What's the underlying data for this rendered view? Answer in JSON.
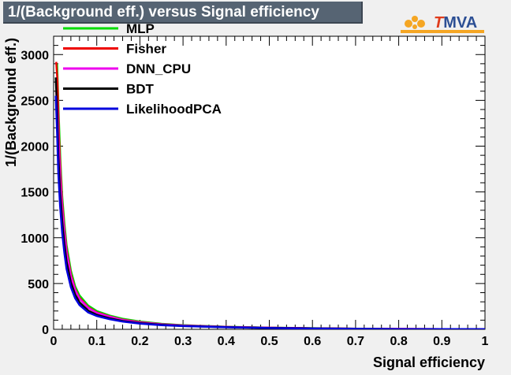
{
  "chart_data": {
    "type": "line",
    "title": "1/(Background eff.) versus Signal efficiency",
    "xlabel": "Signal efficiency",
    "ylabel": "1/(Background eff.)",
    "xlim": [
      0,
      1
    ],
    "ylim": [
      0,
      3200
    ],
    "xticks": [
      "0",
      "0.1",
      "0.2",
      "0.3",
      "0.4",
      "0.5",
      "0.6",
      "0.7",
      "0.8",
      "0.9",
      "1"
    ],
    "yticks": [
      "0",
      "500",
      "1000",
      "1500",
      "2000",
      "2500",
      "3000"
    ],
    "grid": false,
    "legend_position": "top-left",
    "series": [
      {
        "name": "MLP",
        "color": "#00dd00",
        "x": [
          0.008,
          0.012,
          0.016,
          0.02,
          0.025,
          0.03,
          0.04,
          0.05,
          0.06,
          0.08,
          0.1,
          0.13,
          0.16,
          0.2,
          0.25,
          0.3,
          0.4,
          0.5,
          0.6,
          0.7,
          0.8,
          0.9,
          1.0
        ],
        "y": [
          2900,
          2300,
          1800,
          1450,
          1150,
          920,
          640,
          470,
          370,
          260,
          200,
          150,
          115,
          85,
          60,
          45,
          28,
          18,
          12,
          7,
          4,
          2,
          1
        ]
      },
      {
        "name": "Fisher",
        "color": "#ee0000",
        "x": [
          0.006,
          0.009,
          0.012,
          0.016,
          0.02,
          0.025,
          0.03,
          0.04,
          0.05,
          0.06,
          0.08,
          0.1,
          0.13,
          0.16,
          0.2,
          0.25,
          0.3,
          0.4,
          0.5,
          0.6,
          0.7,
          0.8,
          0.9,
          1.0
        ],
        "y": [
          2920,
          2700,
          2150,
          1700,
          1380,
          1090,
          870,
          600,
          440,
          345,
          240,
          185,
          140,
          105,
          78,
          56,
          42,
          26,
          17,
          11,
          7,
          4,
          2,
          1
        ]
      },
      {
        "name": "DNN_CPU",
        "color": "#ee00ee",
        "x": [
          0.006,
          0.009,
          0.012,
          0.016,
          0.02,
          0.025,
          0.03,
          0.04,
          0.05,
          0.06,
          0.08,
          0.1,
          0.13,
          0.16,
          0.2,
          0.25,
          0.3,
          0.4,
          0.5,
          0.6,
          0.7,
          0.8,
          0.9,
          1.0
        ],
        "y": [
          2600,
          2400,
          2000,
          1600,
          1320,
          1050,
          840,
          580,
          430,
          335,
          235,
          180,
          138,
          102,
          76,
          55,
          41,
          26,
          17,
          11,
          7,
          4,
          2,
          1
        ]
      },
      {
        "name": "BDT",
        "color": "#000000",
        "x": [
          0.005,
          0.008,
          0.011,
          0.015,
          0.02,
          0.025,
          0.03,
          0.04,
          0.05,
          0.06,
          0.08,
          0.1,
          0.13,
          0.16,
          0.2,
          0.25,
          0.3,
          0.4,
          0.5,
          0.6,
          0.7,
          0.8,
          0.9,
          1.0
        ],
        "y": [
          2750,
          2400,
          1900,
          1500,
          1180,
          930,
          740,
          510,
          380,
          295,
          205,
          158,
          120,
          90,
          68,
          49,
          37,
          23,
          15,
          10,
          6,
          3,
          2,
          1
        ]
      },
      {
        "name": "LikelihoodPCA",
        "color": "#0000dd",
        "x": [
          0.005,
          0.008,
          0.011,
          0.015,
          0.02,
          0.025,
          0.03,
          0.04,
          0.05,
          0.06,
          0.08,
          0.1,
          0.13,
          0.16,
          0.2,
          0.25,
          0.3,
          0.4,
          0.5,
          0.6,
          0.7,
          0.8,
          0.9,
          1.0
        ],
        "y": [
          2550,
          2150,
          1700,
          1350,
          1050,
          830,
          660,
          460,
          340,
          265,
          185,
          145,
          110,
          84,
          63,
          46,
          35,
          22,
          14,
          9,
          5,
          3,
          2,
          1
        ]
      }
    ]
  },
  "logo": {
    "t": "T",
    "rest": "MVA"
  }
}
